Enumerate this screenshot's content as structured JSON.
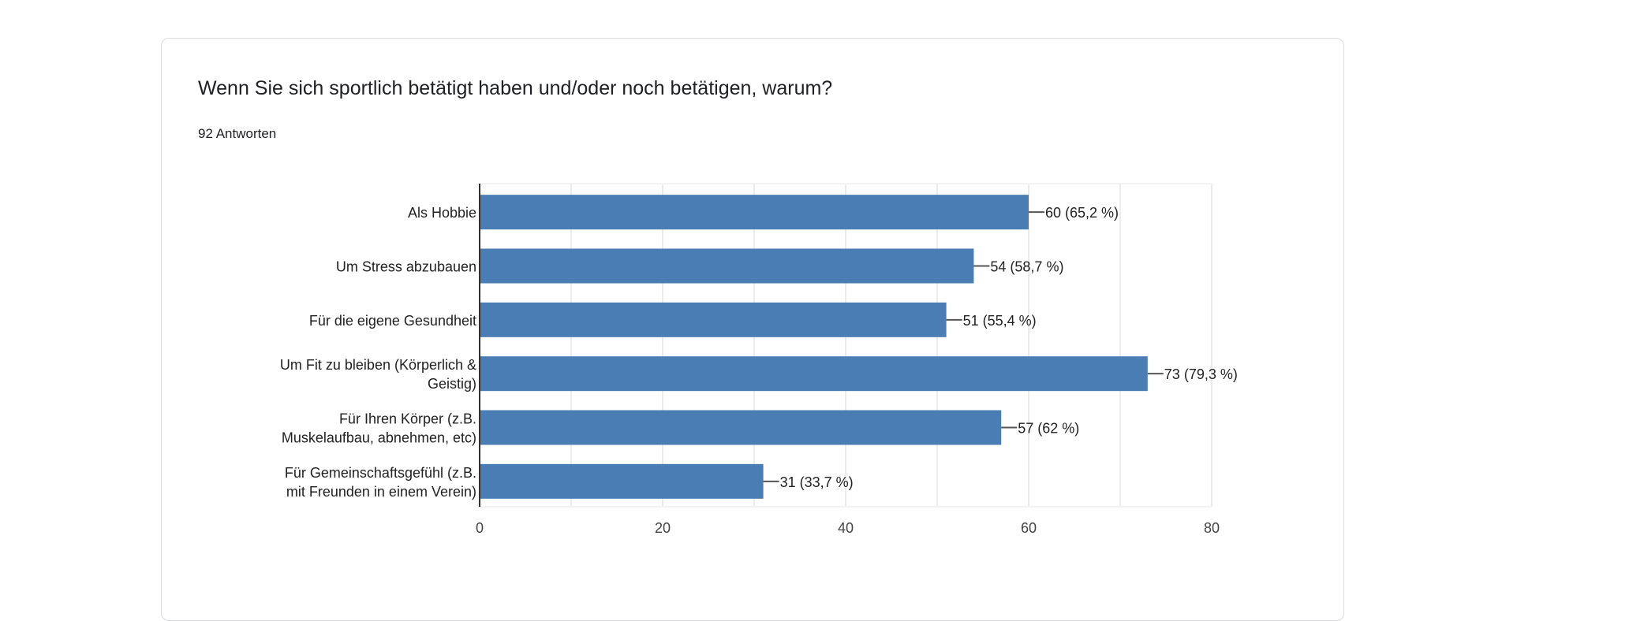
{
  "card": {
    "title": "Wenn Sie sich sportlich betätigt haben und/oder noch betätigen, warum?",
    "responses": "92 Antworten"
  },
  "colors": {
    "bar": "#4a7db4",
    "grid": "#ececec",
    "axis": "#333333"
  },
  "chart_data": {
    "type": "bar",
    "orientation": "horizontal",
    "title": "Wenn Sie sich sportlich betätigt haben und/oder noch betätigen, warum?",
    "categories": [
      [
        "Als Hobbie"
      ],
      [
        "Um Stress abzubauen"
      ],
      [
        "Für die eigene Gesundheit"
      ],
      [
        "Um Fit zu bleiben (Körperlich &",
        "Geistig)"
      ],
      [
        "Für Ihren Körper (z.B.",
        "Muskelaufbau, abnehmen, etc)"
      ],
      [
        "Für Gemeinschaftsgefühl (z.B.",
        "mit Freunden in einem Verein)"
      ]
    ],
    "values": [
      60,
      54,
      51,
      73,
      57,
      31
    ],
    "data_labels": [
      "60 (65,2 %)",
      "54 (58,7 %)",
      "51 (55,4 %)",
      "73 (79,3 %)",
      "57 (62 %)",
      "31 (33,7 %)"
    ],
    "xlim": [
      0,
      80
    ],
    "xticks": [
      "0",
      "20",
      "40",
      "60",
      "80"
    ],
    "grid": true,
    "xlabel": "",
    "ylabel": ""
  }
}
